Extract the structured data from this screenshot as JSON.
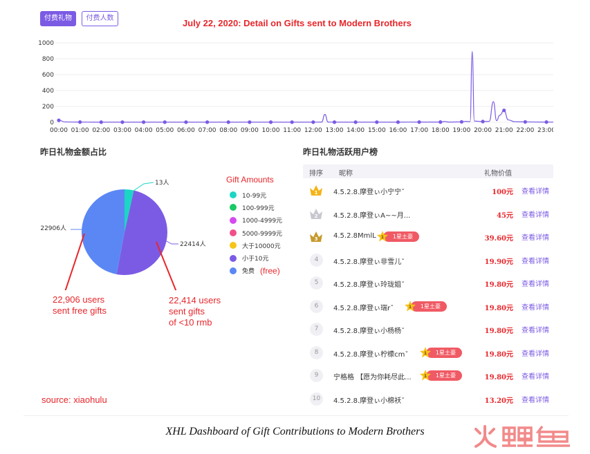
{
  "tabs": [
    {
      "label": "付费礼物"
    },
    {
      "label": "付费人数"
    }
  ],
  "annotation_title": "July 22, 2020:  Detail on Gifts sent to Modern Brothers",
  "line_chart": {
    "type": "line",
    "y_ticks": [
      "1000",
      "800",
      "600",
      "400",
      "200",
      "0"
    ],
    "ylim": [
      0,
      1000
    ],
    "x_ticks": [
      "00:00",
      "01:00",
      "02:00",
      "03:00",
      "04:00",
      "05:00",
      "06:00",
      "07:00",
      "08:00",
      "09:00",
      "10:00",
      "11:00",
      "12:00",
      "13:00",
      "14:00",
      "15:00",
      "16:00",
      "17:00",
      "18:00",
      "19:00",
      "20:00",
      "21:00",
      "22:00",
      "23:00"
    ],
    "color": "#7b5be4",
    "points": [
      {
        "t": 0.0,
        "v": 25
      },
      {
        "t": 0.3,
        "v": 5
      },
      {
        "t": 1.0,
        "v": 3
      },
      {
        "t": 2.0,
        "v": 2
      },
      {
        "t": 3.0,
        "v": 2
      },
      {
        "t": 4.0,
        "v": 2
      },
      {
        "t": 5.0,
        "v": 2
      },
      {
        "t": 6.0,
        "v": 2
      },
      {
        "t": 7.0,
        "v": 2
      },
      {
        "t": 8.0,
        "v": 2
      },
      {
        "t": 9.0,
        "v": 2
      },
      {
        "t": 10.0,
        "v": 2
      },
      {
        "t": 11.0,
        "v": 2
      },
      {
        "t": 12.0,
        "v": 2
      },
      {
        "t": 12.4,
        "v": 3
      },
      {
        "t": 12.55,
        "v": 100
      },
      {
        "t": 12.7,
        "v": 3
      },
      {
        "t": 13.0,
        "v": 2
      },
      {
        "t": 14.0,
        "v": 2
      },
      {
        "t": 15.0,
        "v": 2
      },
      {
        "t": 16.0,
        "v": 2
      },
      {
        "t": 17.0,
        "v": 3
      },
      {
        "t": 18.0,
        "v": 3
      },
      {
        "t": 18.2,
        "v": 10
      },
      {
        "t": 18.4,
        "v": 3
      },
      {
        "t": 19.0,
        "v": 6
      },
      {
        "t": 19.2,
        "v": 12
      },
      {
        "t": 19.4,
        "v": 8
      },
      {
        "t": 19.5,
        "v": 890
      },
      {
        "t": 19.6,
        "v": 15
      },
      {
        "t": 20.0,
        "v": 10
      },
      {
        "t": 20.3,
        "v": 12
      },
      {
        "t": 20.5,
        "v": 260
      },
      {
        "t": 20.65,
        "v": 20
      },
      {
        "t": 20.8,
        "v": 90
      },
      {
        "t": 21.0,
        "v": 150
      },
      {
        "t": 21.2,
        "v": 30
      },
      {
        "t": 21.5,
        "v": 8
      },
      {
        "t": 22.0,
        "v": 5
      },
      {
        "t": 23.0,
        "v": 3
      },
      {
        "t": 23.8,
        "v": 2
      }
    ],
    "markers": [
      {
        "t": 0.0,
        "v": 25
      },
      {
        "t": 1.0,
        "v": 3
      },
      {
        "t": 2.0,
        "v": 2
      },
      {
        "t": 3.0,
        "v": 2
      },
      {
        "t": 4.0,
        "v": 2
      },
      {
        "t": 5.0,
        "v": 2
      },
      {
        "t": 6.0,
        "v": 2
      },
      {
        "t": 7.0,
        "v": 2
      },
      {
        "t": 8.0,
        "v": 2
      },
      {
        "t": 9.0,
        "v": 2
      },
      {
        "t": 10.0,
        "v": 2
      },
      {
        "t": 11.0,
        "v": 2
      },
      {
        "t": 12.0,
        "v": 2
      },
      {
        "t": 13.0,
        "v": 2
      },
      {
        "t": 14.0,
        "v": 2
      },
      {
        "t": 15.0,
        "v": 2
      },
      {
        "t": 16.0,
        "v": 2
      },
      {
        "t": 17.0,
        "v": 3
      },
      {
        "t": 18.0,
        "v": 3
      },
      {
        "t": 19.0,
        "v": 6
      },
      {
        "t": 20.0,
        "v": 10
      },
      {
        "t": 21.0,
        "v": 150
      },
      {
        "t": 22.0,
        "v": 5
      },
      {
        "t": 23.0,
        "v": 3
      }
    ]
  },
  "pie_section": {
    "title": "昨日礼物金额占比",
    "legend_title": "Gift Amounts",
    "legend": [
      {
        "label": "10-99元",
        "color": "#1bd6c4",
        "extra": ""
      },
      {
        "label": "100-999元",
        "color": "#19c964",
        "extra": ""
      },
      {
        "label": "1000-4999元",
        "color": "#d54af0",
        "extra": ""
      },
      {
        "label": "5000-9999元",
        "color": "#f0508a",
        "extra": ""
      },
      {
        "label": "大于10000元",
        "color": "#f5c518",
        "extra": ""
      },
      {
        "label": "小于10元",
        "color": "#7b5be4",
        "extra": ""
      },
      {
        "label": "免费",
        "color": "#5b87f5",
        "extra": "(free)"
      }
    ],
    "chart_data": {
      "type": "pie",
      "slices": [
        {
          "label": "13人",
          "value": 13,
          "color": "#1bd6c4"
        },
        {
          "label": "22414人",
          "value": 22414,
          "color": "#7b5be4"
        },
        {
          "label": "22906人",
          "value": 22906,
          "color": "#5b87f5"
        }
      ]
    },
    "annotation_free": [
      "22,906 users",
      "sent free gifts"
    ],
    "annotation_small": [
      "22,414 users",
      "sent gifts",
      "of <10 rmb"
    ],
    "source": "source: xiaohulu"
  },
  "ranking": {
    "title": "昨日礼物活跃用户榜",
    "headers": {
      "rank": "排序",
      "nick": "昵称",
      "value": "礼物价值"
    },
    "detail_label": "查看详情",
    "rows": [
      {
        "rank": "1",
        "medal": "gold",
        "nick": "4.5.2.8.摩登ぃ小宁宁ˇ",
        "vip": "",
        "value": "100元"
      },
      {
        "rank": "2",
        "medal": "silver",
        "nick": "4.5.2.8.摩登ぃA~~月...",
        "vip": "",
        "value": "45元"
      },
      {
        "rank": "3",
        "medal": "bronze",
        "nick": "4.5.2.8MmlL",
        "vip": "1星土豪",
        "value": "39.60元"
      },
      {
        "rank": "4",
        "medal": "",
        "nick": "4.5.2.8.摩登ぃ非雪儿ˇ",
        "vip": "",
        "value": "19.90元"
      },
      {
        "rank": "5",
        "medal": "",
        "nick": "4.5.2.8.摩登ぃ玲珑姐ˇ",
        "vip": "",
        "value": "19.80元"
      },
      {
        "rank": "6",
        "medal": "",
        "nick": "4.5.2.8.摩登ぃ瑞rˇ",
        "vip": "1星土豪",
        "value": "19.80元"
      },
      {
        "rank": "7",
        "medal": "",
        "nick": "4.5.2.8.摩登ぃ小杨杨ˇ",
        "vip": "",
        "value": "19.80元"
      },
      {
        "rank": "8",
        "medal": "",
        "nick": "4.5.2.8.摩登ぃ柠檬cmˇ",
        "vip": "1星土豪",
        "value": "19.80元"
      },
      {
        "rank": "9",
        "medal": "",
        "nick": "宁格格 【愿为你耗尽此...",
        "vip": "1星土豪",
        "value": "19.80元"
      },
      {
        "rank": "10",
        "medal": "",
        "nick": "4.5.2.8.摩登ぃ小棉袄ˇ",
        "vip": "",
        "value": "13.20元"
      }
    ]
  },
  "caption": "XHL Dashboard of Gift Contributions to Modern Brothers",
  "logo_text": "火鲤鱼",
  "vip_star_number": "1"
}
